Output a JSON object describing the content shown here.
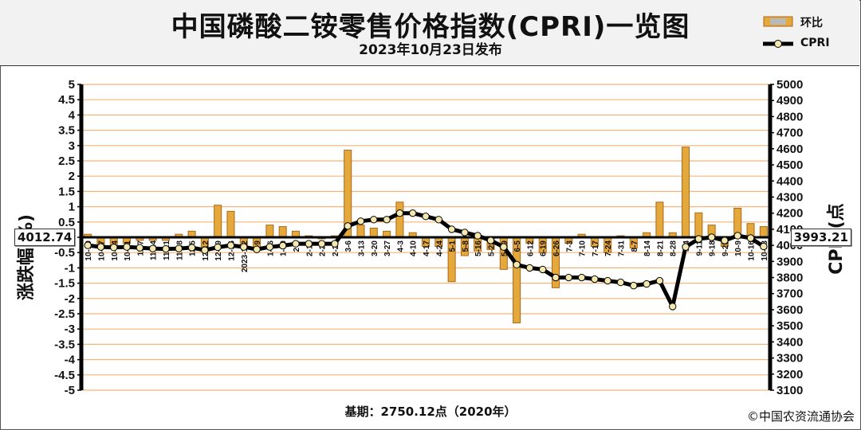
{
  "title": "中国磷酸二铵零售价格指数(CPRI)一览图",
  "subtitle": "2023年10月23日发布",
  "footer": {
    "base": "基期：2750.12点（2020年）",
    "copyright": "©中国农资流通协会"
  },
  "colors": {
    "bar_fill": "#e5a83a",
    "bar_edge": "#a8691a",
    "grid": "#f6b576",
    "line": "#000000",
    "marker": "#f2e8b0"
  },
  "chart_data": {
    "type": "bar+line",
    "categories": [
      "10-10",
      "10-17",
      "10-24",
      "10-31",
      "11-7",
      "11-14",
      "11-21",
      "11-28",
      "12-5",
      "12-12",
      "12-19",
      "12-26",
      "2023-1-2",
      "1-9",
      "1-16",
      "1-30",
      "2-6",
      "2-13",
      "2-20",
      "2-27",
      "3-6",
      "3-13",
      "3-20",
      "3-27",
      "4-3",
      "4-10",
      "4-17",
      "4-24",
      "5-1",
      "5-8",
      "5-16",
      "5-22",
      "5-29",
      "6-5",
      "6-12",
      "6-19",
      "6-26",
      "7-3",
      "7-10",
      "7-17",
      "7-24",
      "7-31",
      "8-7",
      "8-14",
      "8-21",
      "8-28",
      "9-4",
      "9-11",
      "9-18",
      "9-25",
      "10-9",
      "10-16",
      "10-23"
    ],
    "series": [
      {
        "name": "环比",
        "type": "bar",
        "axis": "left",
        "values": [
          0.1,
          -0.3,
          -0.3,
          -0.2,
          -0.1,
          -0.1,
          -0.1,
          0.1,
          0.2,
          -0.4,
          1.05,
          0.85,
          -0.3,
          -0.4,
          0.4,
          0.35,
          0.2,
          0.05,
          -0.05,
          0.05,
          2.85,
          0.4,
          0.3,
          0.2,
          1.15,
          0.15,
          -0.3,
          -0.3,
          -1.45,
          -0.6,
          -0.45,
          -0.4,
          -1.05,
          -2.8,
          -0.2,
          -0.5,
          -1.65,
          -0.2,
          0.1,
          -0.3,
          -0.5,
          0.05,
          -0.35,
          0.15,
          1.15,
          0.15,
          2.95,
          0.8,
          0.4,
          -0.3,
          0.95,
          0.45,
          0.35
        ]
      },
      {
        "name": "CPRI",
        "type": "line",
        "axis": "right",
        "values": [
          4000,
          3990,
          3987,
          3990,
          3985,
          3980,
          3978,
          3980,
          3986,
          3970,
          3988,
          4000,
          3990,
          3975,
          3990,
          3998,
          4010,
          4010,
          4010,
          4010,
          4120,
          4150,
          4160,
          4160,
          4200,
          4200,
          4180,
          4160,
          4100,
          4080,
          4060,
          4030,
          3990,
          3880,
          3860,
          3850,
          3800,
          3800,
          3800,
          3790,
          3780,
          3770,
          3750,
          3760,
          3780,
          3620,
          3990,
          4040,
          4050,
          4030,
          4060,
          4045,
          3993.21
        ]
      }
    ],
    "y_left": {
      "label": "涨跌幅(%)",
      "min": -5,
      "max": 5,
      "step": 0.5
    },
    "y_right": {
      "label": "CPRI(点",
      "min": 3100,
      "max": 5000,
      "step": 100
    },
    "start_value": "4012.74",
    "end_value": "3993.21",
    "grid": true,
    "legend": "top-right"
  }
}
